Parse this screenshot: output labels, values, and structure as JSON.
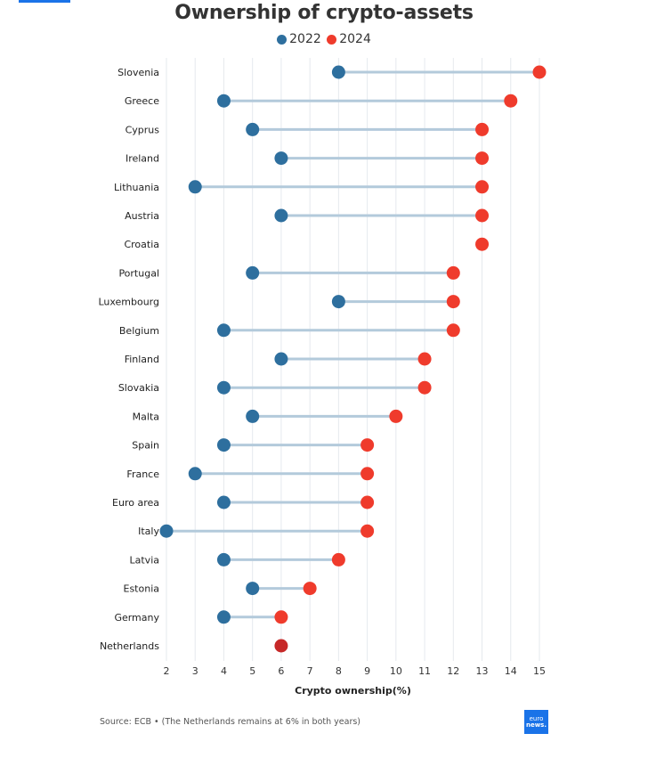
{
  "chart_data": {
    "type": "dumbbell",
    "title": "Ownership of crypto-assets",
    "xlabel": "Crypto ownership(%)",
    "ylabel": "",
    "xlim": [
      2,
      15
    ],
    "xticks": [
      2,
      3,
      4,
      5,
      6,
      7,
      8,
      9,
      10,
      11,
      12,
      13,
      14,
      15
    ],
    "grid": "vertical",
    "legend_position": "top-center",
    "series": [
      {
        "name": "2022",
        "color": "#2e6f9e"
      },
      {
        "name": "2024",
        "color": "#ef3b2c"
      }
    ],
    "categories": [
      "Slovenia",
      "Greece",
      "Cyprus",
      "Ireland",
      "Lithuania",
      "Austria",
      "Croatia",
      "Portugal",
      "Luxembourg",
      "Belgium",
      "Finland",
      "Slovakia",
      "Malta",
      "Spain",
      "France",
      "Euro area",
      "Italy",
      "Latvia",
      "Estonia",
      "Germany",
      "Netherlands"
    ],
    "values_2022": [
      8,
      4,
      5,
      6,
      3,
      6,
      null,
      5,
      8,
      4,
      6,
      4,
      5,
      4,
      3,
      4,
      2,
      4,
      5,
      4,
      6
    ],
    "values_2024": [
      15,
      14,
      13,
      13,
      13,
      13,
      13,
      12,
      12,
      12,
      11,
      11,
      10,
      9,
      9,
      9,
      9,
      8,
      7,
      6,
      6
    ],
    "connector_color": "#b3cadb",
    "overlap_color": "#c62828"
  },
  "footer": {
    "source": "Source: ECB • (The Netherlands remains at 6% in both years)",
    "logo_line1": "euro",
    "logo_line2": "news."
  }
}
